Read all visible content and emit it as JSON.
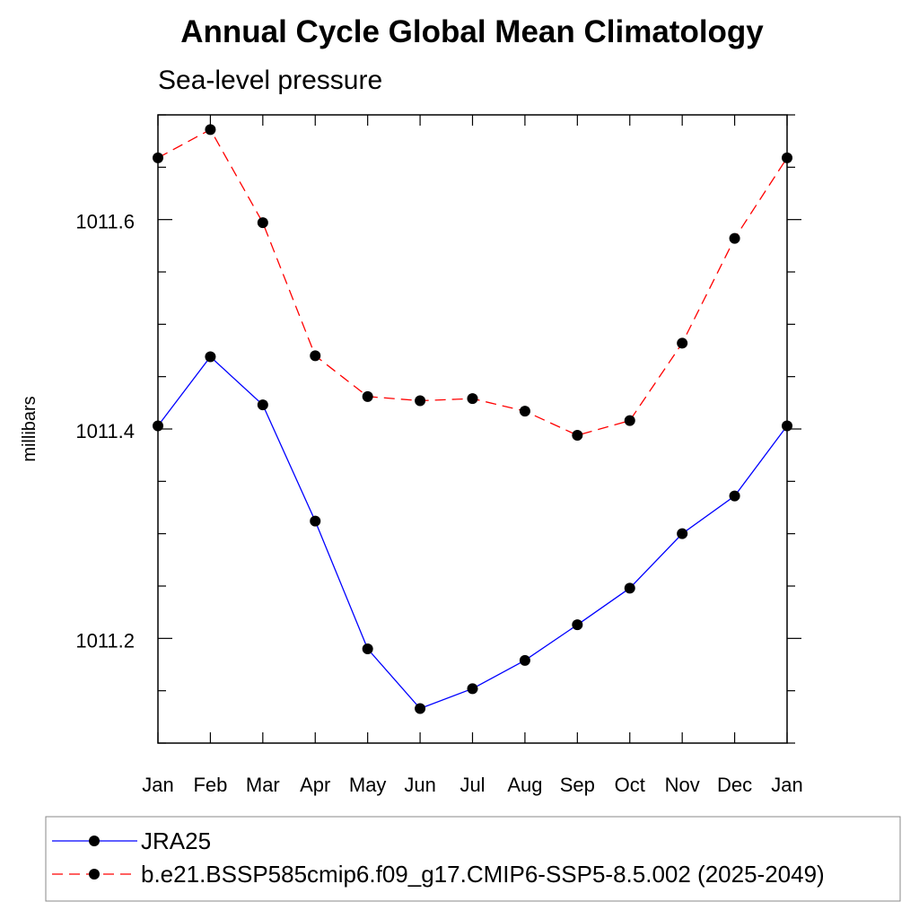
{
  "chart_data": {
    "type": "line",
    "title": "Annual Cycle Global Mean Climatology",
    "subtitle": "Sea-level pressure",
    "xlabel": "",
    "ylabel": "millibars",
    "categories": [
      "Jan",
      "Feb",
      "Mar",
      "Apr",
      "May",
      "Jun",
      "Jul",
      "Aug",
      "Sep",
      "Oct",
      "Nov",
      "Dec",
      "Jan"
    ],
    "ylim": [
      1011.1,
      1011.7
    ],
    "yticks_major": [
      1011.2,
      1011.4,
      1011.6
    ],
    "ytick_labels": [
      "1011.2",
      "1011.4",
      "1011.6"
    ],
    "grid": false,
    "legend_placement": "bottom",
    "series": [
      {
        "name": "JRA25",
        "color": "#0000ff",
        "dash": "solid",
        "values": [
          1011.403,
          1011.469,
          1011.423,
          1011.312,
          1011.19,
          1011.133,
          1011.152,
          1011.179,
          1011.213,
          1011.248,
          1011.3,
          1011.336,
          1011.403
        ]
      },
      {
        "name": "b.e21.BSSP585cmip6.f09_g17.CMIP6-SSP5-8.5.002 (2025-2049)",
        "color": "#ff0000",
        "dash": "dashed",
        "values": [
          1011.659,
          1011.686,
          1011.597,
          1011.47,
          1011.431,
          1011.427,
          1011.429,
          1011.417,
          1011.394,
          1011.408,
          1011.482,
          1011.582,
          1011.659
        ]
      }
    ]
  }
}
